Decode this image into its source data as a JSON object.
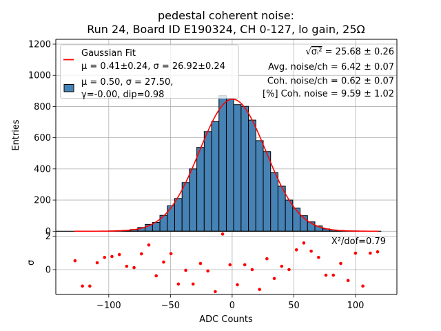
{
  "title": {
    "line1": "pedestal coherent noise:",
    "line2": "Run 24, Board ID E190324, CH 0-127, lo gain, 25Ω"
  },
  "legend": {
    "fit_label": "Gaussian Fit",
    "fit_params": "μ = 0.41±0.24, σ = 26.92±0.24",
    "hist_line1": "μ = 0.50, σ = 27.50,",
    "hist_line2": "γ=-0.00, dip=0.98"
  },
  "stats": {
    "sqrt_prefix": "√",
    "sqrt_term": "σᵢ²",
    "sqrt_value": " = 25.68 ± 0.26",
    "avg_noise": "Avg. noise/ch = 6.42 ± 0.07",
    "coh_noise": "Coh. noise/ch = 0.62 ± 0.07",
    "coh_percent": "[%] Coh. noise = 9.59  ± 1.02"
  },
  "chart_data": {
    "type": "bar",
    "title": "pedestal coherent noise: Run 24, Board ID E190324, CH 0-127, lo gain, 25Ω",
    "xlabel": "ADC Counts",
    "ylabel": "Entries",
    "xlim": [
      -142.9,
      133.5
    ],
    "ylim": [
      0,
      1231
    ],
    "grid": true,
    "xticks": [
      -100,
      -50,
      0,
      50,
      100
    ],
    "xtick_labels": [
      "−100",
      "−50",
      "0",
      "50",
      "100"
    ],
    "yticks": [
      0,
      200,
      400,
      600,
      800,
      1000,
      1200
    ],
    "ytick_labels": [
      "0",
      "200",
      "400",
      "600",
      "800",
      "1000",
      "1200"
    ],
    "legend_position": "top-left",
    "histogram": {
      "bin_start": -130.3,
      "bin_width": 5.98,
      "counts": [
        0,
        0,
        0,
        0,
        1,
        2,
        4,
        6,
        11,
        24,
        44,
        57,
        102,
        163,
        210,
        312,
        400,
        538,
        639,
        703,
        870,
        853,
        812,
        801,
        713,
        581,
        511,
        375,
        289,
        200,
        148,
        100,
        60,
        34,
        15,
        8,
        5,
        1,
        2,
        0,
        1,
        0
      ],
      "color": "#4682b4",
      "edgecolor": "#000000"
    },
    "fit": {
      "type": "gaussian",
      "amplitude": 847,
      "mu": 0.41,
      "sigma": 26.92,
      "x_range": [
        -128,
        118.5
      ],
      "color": "#ff0000"
    },
    "residuals": {
      "ylabel": "σ",
      "ylim": [
        -1.48,
        2.29
      ],
      "yticks": [
        0,
        2
      ],
      "ytick_labels": [
        "0",
        "2"
      ],
      "values": [
        0.53,
        -0.98,
        -0.98,
        0.41,
        0.73,
        0.78,
        0.9,
        0.2,
        0.12,
        0.94,
        1.47,
        -0.37,
        0.45,
        0.95,
        -0.86,
        -0.04,
        -0.86,
        0.37,
        -0.08,
        -1.31,
        2.12,
        0.29,
        -0.9,
        0.29,
        0.0,
        -1.18,
        0.65,
        -0.53,
        0.2,
        0.0,
        1.18,
        1.59,
        1.1,
        0.73,
        -0.33,
        -0.33,
        0.37,
        -0.65,
        0.98,
        -0.98,
        0.98,
        1.06
      ],
      "color": "#ff0000",
      "annotation": "X²/dof=0.79"
    }
  }
}
